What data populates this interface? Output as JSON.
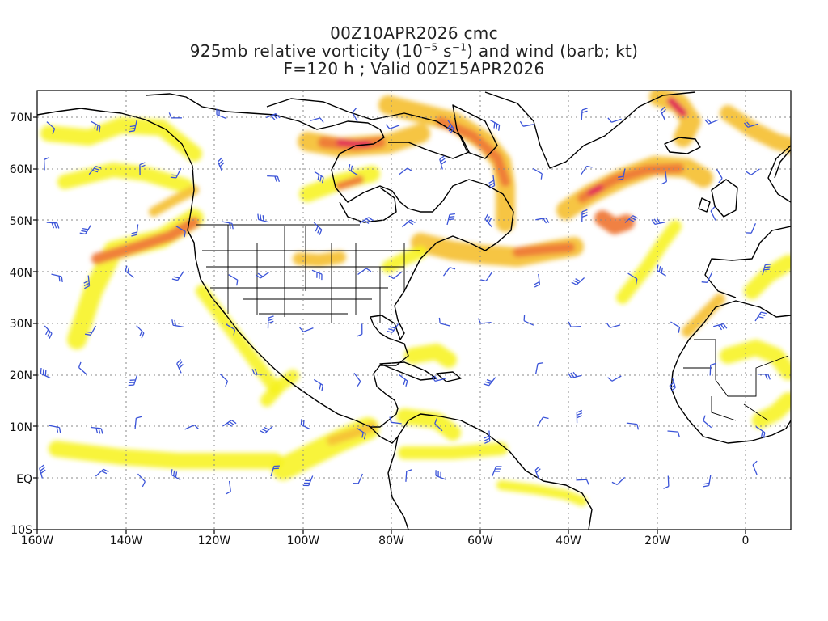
{
  "title": {
    "line1": "00Z10APR2026 cmc",
    "line2_prefix": "925mb relative vorticity (10",
    "line2_exp1": "−5",
    "line2_mid": " s",
    "line2_exp2": "−1",
    "line2_suffix": ") and wind (barb; kt)",
    "line3": "F=120 h ; Valid 00Z15APR2026"
  },
  "axes": {
    "lat_labels": [
      "70N",
      "60N",
      "50N",
      "40N",
      "30N",
      "20N",
      "10N",
      "EQ",
      "10S"
    ],
    "lon_labels": [
      "160W",
      "140W",
      "120W",
      "100W",
      "80W",
      "60W",
      "40W",
      "20W",
      "0"
    ]
  },
  "colors": {
    "barb": "#3b54d8",
    "coast": "#000000",
    "grid": "#888888",
    "shade_low": "#f7f21a",
    "shade_mid": "#f6c238",
    "shade_high": "#ef7a3a",
    "shade_max": "#e0245c"
  }
}
